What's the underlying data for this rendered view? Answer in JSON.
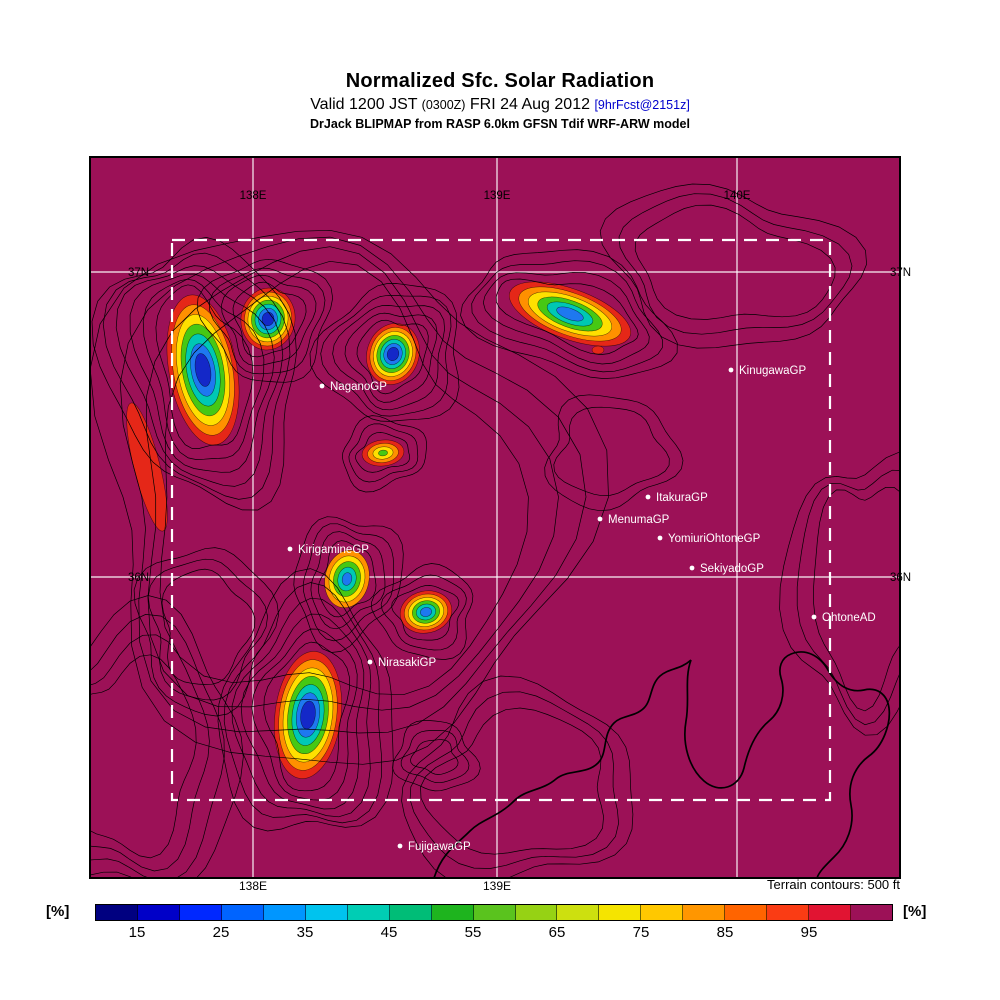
{
  "header": {
    "title": "Normalized Sfc. Solar Radiation",
    "valid_prefix": "Valid 1200 JST ",
    "valid_time_z": "(0300Z)",
    "valid_date": " FRI 24 Aug 2012 ",
    "forecast_tag": "[9hrFcst@2151z]",
    "forecast_tag_color": "#0000cc",
    "model_line": "DrJack BLIPMAP from RASP 6.0km GFSN Tdif WRF-ARW model"
  },
  "map": {
    "background_color": "#9c1157",
    "contour_color": "#000000",
    "grid_color": "#ffffff",
    "lon_labels_top": [
      "138E",
      "139E",
      "140E"
    ],
    "lon_labels_bottom": [
      "138E",
      "139E"
    ],
    "lat_label_north": "37N",
    "lat_label_south": "36N",
    "terrain_note": "Terrain contours: 500 ft",
    "locations": [
      {
        "name": "NaganoGP"
      },
      {
        "name": "KinugawaGP"
      },
      {
        "name": "ItakuraGP"
      },
      {
        "name": "MenumaGP"
      },
      {
        "name": "YomiuriOhtoneGP"
      },
      {
        "name": "SekiyadoGP"
      },
      {
        "name": "OhtoneAD"
      },
      {
        "name": "KirigamineGP"
      },
      {
        "name": "NirasakiGP"
      },
      {
        "name": "FujigawaGP"
      }
    ]
  },
  "colorbar": {
    "unit_label": "[%]",
    "ticks": [
      15,
      25,
      35,
      45,
      55,
      65,
      75,
      85,
      95
    ],
    "range": [
      10,
      105
    ],
    "segment_colors": [
      "#000080",
      "#0000c8",
      "#0028ff",
      "#0064ff",
      "#0096ff",
      "#00c3ee",
      "#00cdb4",
      "#00bd77",
      "#1eb41e",
      "#5ac31e",
      "#96d214",
      "#cde00f",
      "#f5e400",
      "#ffc800",
      "#ff9600",
      "#ff6400",
      "#fa3c14",
      "#e11432",
      "#9c1157"
    ]
  },
  "chart_data": {
    "type": "heatmap",
    "title": "Normalized Sfc. Solar Radiation",
    "valid": "1200 JST (0300Z) FRI 24 Aug 2012",
    "forecast": "9hrFcst@2151z",
    "model": "DrJack BLIPMAP from RASP 6.0km GFSN Tdif WRF-ARW model",
    "units": "%",
    "colorbar_ticks": [
      15,
      25,
      35,
      45,
      55,
      65,
      75,
      85,
      95
    ],
    "lon_gridlines": [
      "138E",
      "139E",
      "140E"
    ],
    "lat_gridlines": [
      "37N",
      "36N"
    ],
    "terrain_contour_interval_ft": 500,
    "background_value_note": "magenta background = ~100% normalized solar radiation; blue cores over peaks = lowest values (~15-25%)"
  }
}
